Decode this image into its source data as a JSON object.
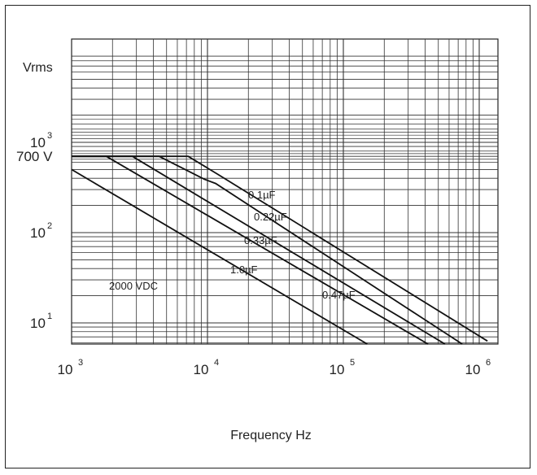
{
  "chart_data": {
    "type": "line",
    "title": "",
    "xlabel": "Frequency Hz",
    "ylabel": "Vrms",
    "x_scale": "log",
    "y_scale": "log",
    "xlim": [
      1000,
      1200000
    ],
    "ylim": [
      5,
      3000
    ],
    "grid": true,
    "x_ticks": [
      {
        "value": 1000,
        "base": "10",
        "exp": "3"
      },
      {
        "value": 10000,
        "base": "10",
        "exp": "4"
      },
      {
        "value": 100000,
        "base": "10",
        "exp": "5"
      },
      {
        "value": 1000000,
        "base": "10",
        "exp": "6"
      }
    ],
    "y_ticks": [
      {
        "value": 10,
        "base": "10",
        "exp": "1"
      },
      {
        "value": 100,
        "base": "10",
        "exp": "2"
      },
      {
        "value": 1000,
        "base": "10",
        "exp": "3"
      }
    ],
    "y_special_tick": {
      "value": 700,
      "label": "700 V"
    },
    "annotation": "2000 VDC",
    "series": [
      {
        "name": "0.1µF",
        "points": [
          [
            1000,
            700
          ],
          [
            7200,
            700
          ],
          [
            12000,
            440
          ],
          [
            1150000,
            6.3
          ]
        ]
      },
      {
        "name": "0.22µF",
        "points": [
          [
            1000,
            700
          ],
          [
            4400,
            700
          ],
          [
            9500,
            390
          ],
          [
            11500,
            350
          ],
          [
            750000,
            5.5
          ]
        ]
      },
      {
        "name": "0.33µF",
        "points": [
          [
            1000,
            700
          ],
          [
            2800,
            700
          ],
          [
            560000,
            5.2
          ]
        ]
      },
      {
        "name": "0.47µF",
        "points": [
          [
            1000,
            700
          ],
          [
            1800,
            700
          ],
          [
            420000,
            5
          ]
        ]
      },
      {
        "name": "1.0µF",
        "points": [
          [
            1000,
            500
          ],
          [
            150000,
            5
          ]
        ]
      }
    ]
  }
}
